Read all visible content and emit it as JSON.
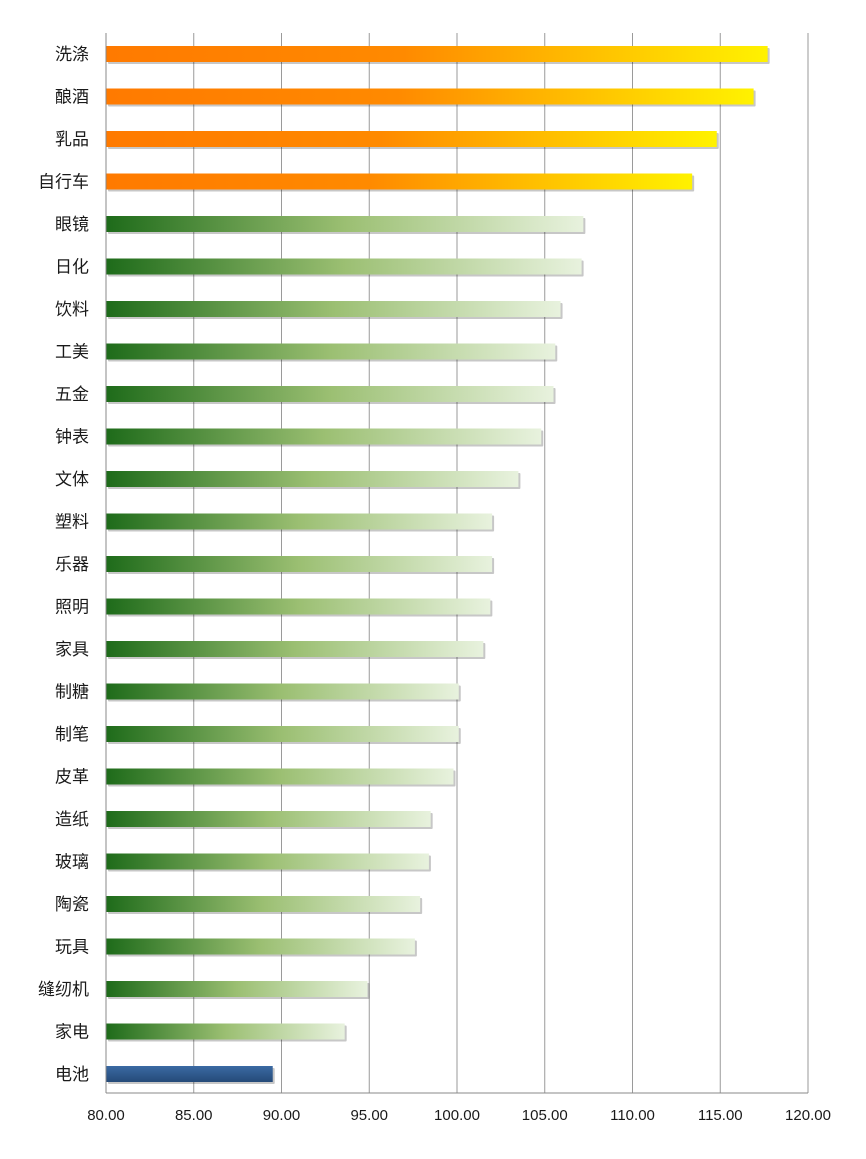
{
  "chart_data": {
    "type": "bar",
    "orientation": "horizontal",
    "title": "",
    "xlabel": "",
    "ylabel": "",
    "xlim": [
      80,
      120
    ],
    "x_ticks": [
      "80.00",
      "85.00",
      "90.00",
      "95.00",
      "100.00",
      "105.00",
      "110.00",
      "115.00",
      "120.00"
    ],
    "grid": "vertical",
    "legend": "none",
    "categories": [
      "洗涤",
      "酿酒",
      "乳品",
      "自行车",
      "眼镜",
      "日化",
      "饮料",
      "工美",
      "五金",
      "钟表",
      "文体",
      "塑料",
      "乐器",
      "照明",
      "家具",
      "制糖",
      "制笔",
      "皮革",
      "造纸",
      "玻璃",
      "陶瓷",
      "玩具",
      "缝纫机",
      "家电",
      "电池"
    ],
    "values": [
      117.7,
      116.9,
      114.8,
      113.4,
      107.2,
      107.1,
      105.9,
      105.6,
      105.5,
      104.8,
      103.5,
      102.0,
      102.0,
      101.9,
      101.5,
      100.1,
      100.1,
      99.8,
      98.5,
      98.4,
      97.9,
      97.6,
      94.9,
      93.6,
      89.5
    ],
    "bar_groups": [
      "orange",
      "orange",
      "orange",
      "orange",
      "green",
      "green",
      "green",
      "green",
      "green",
      "green",
      "green",
      "green",
      "green",
      "green",
      "green",
      "green",
      "green",
      "green",
      "green",
      "green",
      "green",
      "green",
      "green",
      "green",
      "blue"
    ],
    "colors": {
      "orange_start": "#ff7a00",
      "orange_end": "#fff200",
      "green_start": "#1e6b1a",
      "green_mid": "#9bbf72",
      "green_end": "#e8f2de",
      "blue": "#2f5a8f",
      "grid": "#9a9a9a",
      "axis": "#888888"
    }
  }
}
